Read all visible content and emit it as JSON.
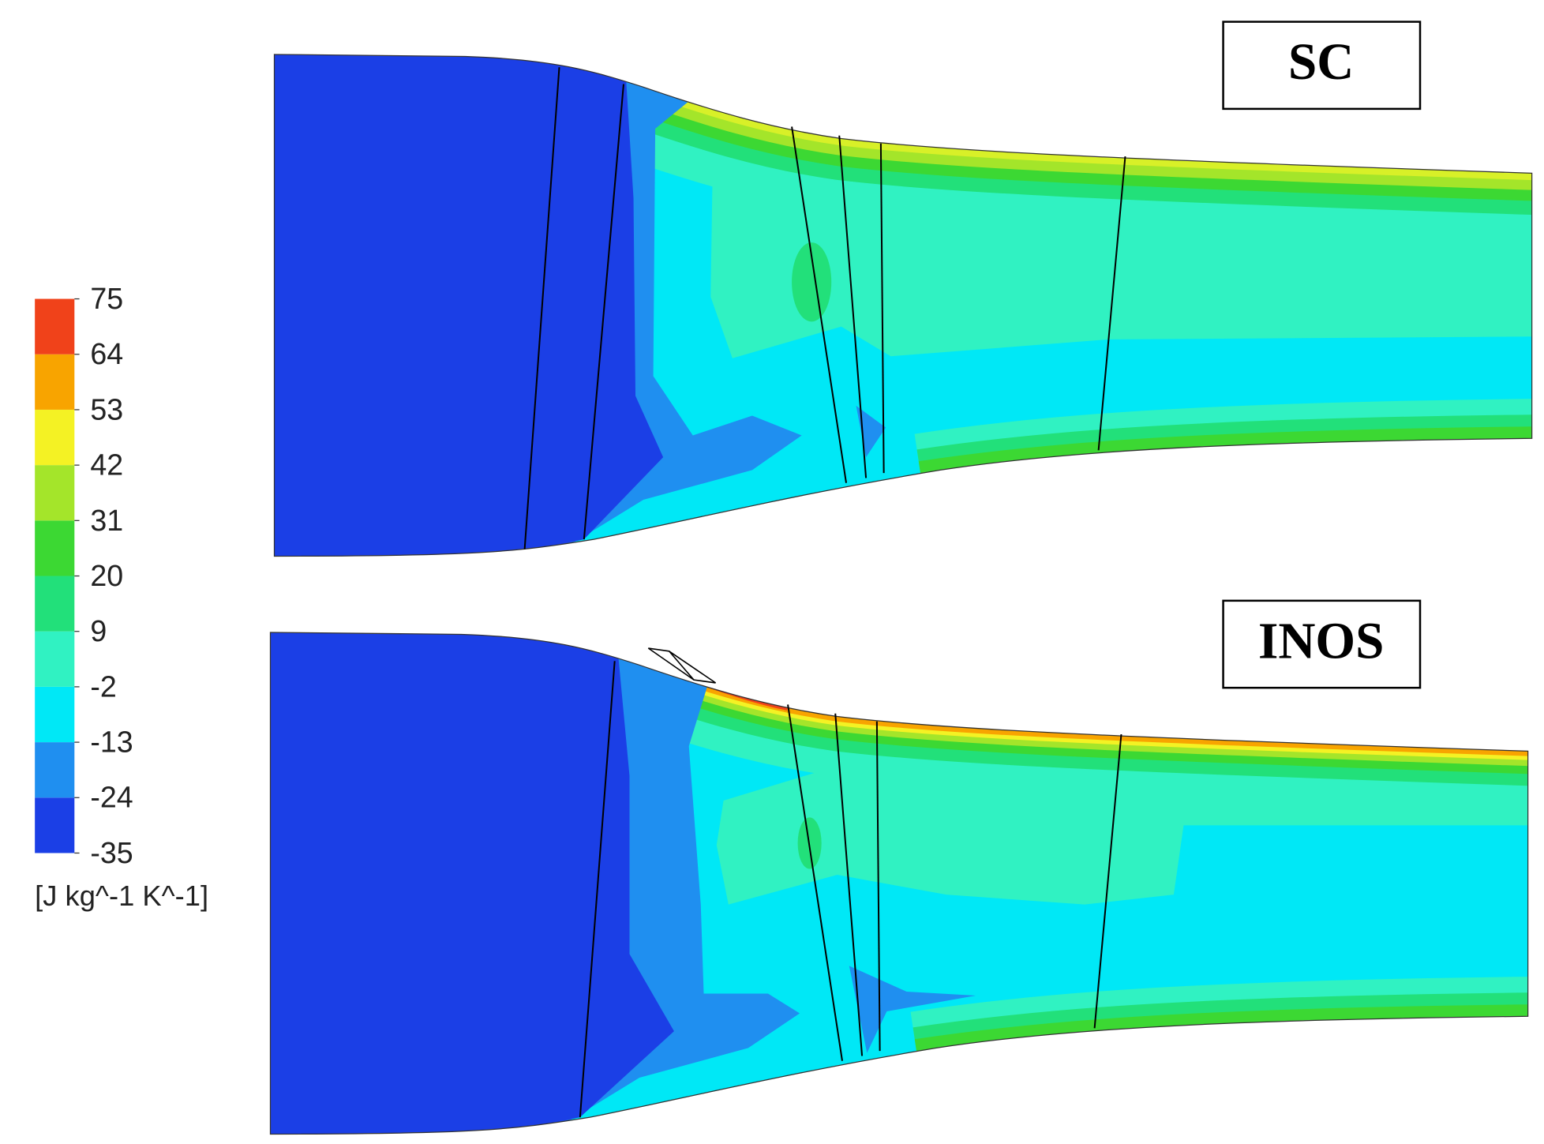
{
  "chart_data": {
    "type": "contour",
    "panels": [
      "SC",
      "INOS"
    ],
    "colorbar": {
      "label": "[J kg^-1 K^-1]",
      "lim": [
        -35,
        75
      ],
      "ticks": [
        -35,
        -24,
        -13,
        -2,
        9,
        20,
        31,
        42,
        53,
        64,
        75
      ],
      "colors": [
        "#1b3fe6",
        "#1f8ff0",
        "#00e8f6",
        "#30f2c2",
        "#22e07a",
        "#3cd833",
        "#a4e52a",
        "#f4f224",
        "#f8a400",
        "#f0421a"
      ]
    }
  }
}
